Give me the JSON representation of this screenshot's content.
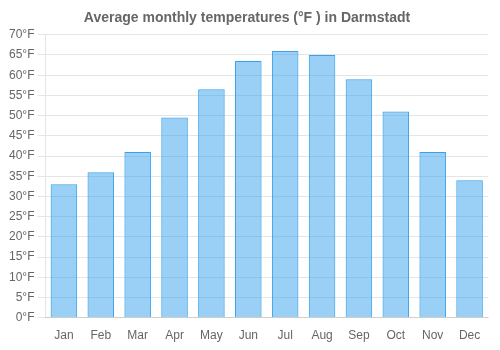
{
  "chart_data": {
    "type": "bar",
    "title": "Average monthly temperatures (°F ) in Darmstadt",
    "categories": [
      "Jan",
      "Feb",
      "Mar",
      "Apr",
      "May",
      "Jun",
      "Jul",
      "Aug",
      "Sep",
      "Oct",
      "Nov",
      "Dec"
    ],
    "values": [
      33,
      36,
      41,
      49.5,
      56.5,
      63.5,
      66,
      65,
      59,
      51,
      41,
      34
    ],
    "ylim": [
      0,
      70
    ],
    "yticks": [
      {
        "value": 0,
        "label": "0°F"
      },
      {
        "value": 5,
        "label": "5°F"
      },
      {
        "value": 10,
        "label": "10°F"
      },
      {
        "value": 15,
        "label": "15°F"
      },
      {
        "value": 20,
        "label": "20°F"
      },
      {
        "value": 25,
        "label": "25°F"
      },
      {
        "value": 30,
        "label": "30°F"
      },
      {
        "value": 35,
        "label": "35°F"
      },
      {
        "value": 40,
        "label": "40°F"
      },
      {
        "value": 45,
        "label": "45°F"
      },
      {
        "value": 50,
        "label": "50°F"
      },
      {
        "value": 55,
        "label": "55°F"
      },
      {
        "value": 60,
        "label": "60°F"
      },
      {
        "value": 65,
        "label": "65°F"
      },
      {
        "value": 70,
        "label": "70°F"
      }
    ],
    "grid": "y"
  }
}
